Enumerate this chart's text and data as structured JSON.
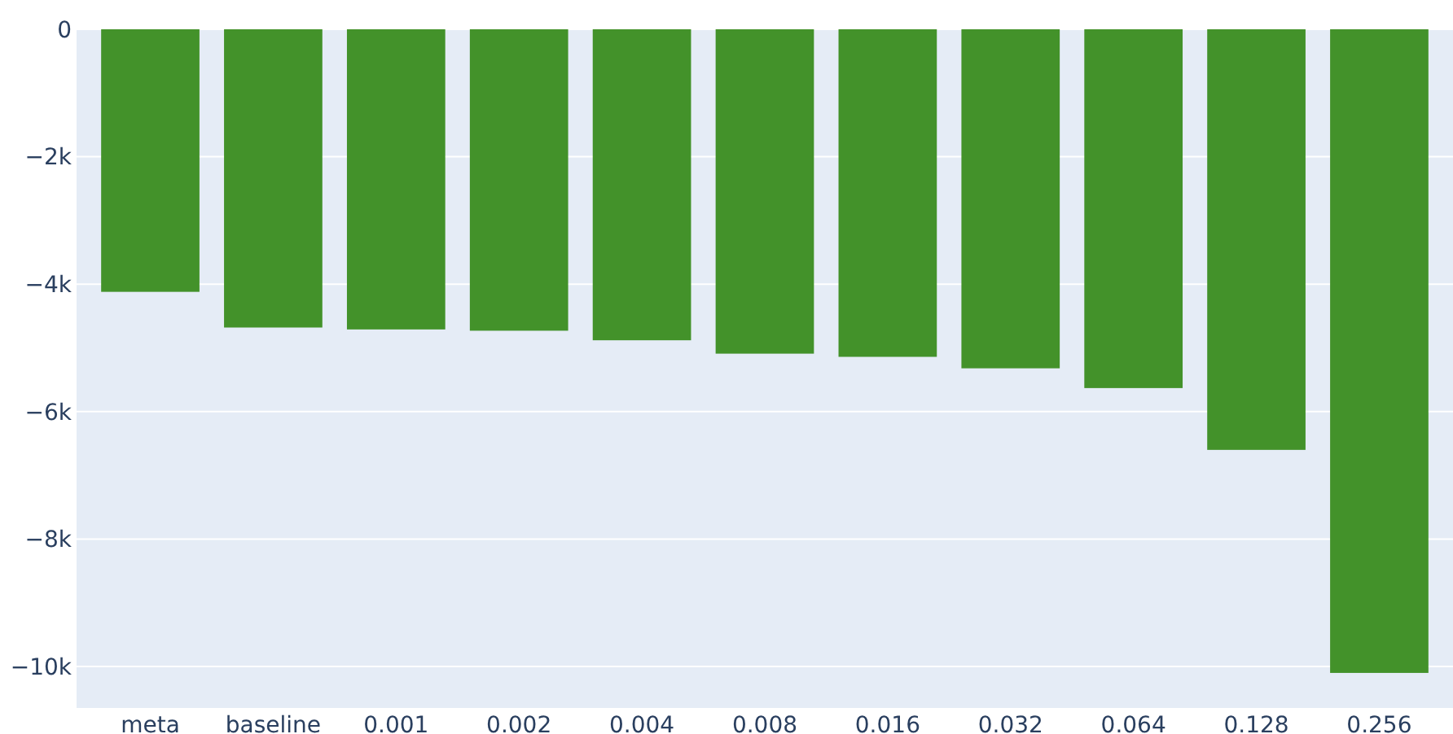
{
  "chart_data": {
    "type": "bar",
    "categories": [
      "meta",
      "baseline",
      "0.001",
      "0.002",
      "0.004",
      "0.008",
      "0.016",
      "0.032",
      "0.064",
      "0.128",
      "0.256"
    ],
    "values": [
      -4120,
      -4680,
      -4710,
      -4730,
      -4880,
      -5090,
      -5140,
      -5320,
      -5630,
      -6600,
      -10100
    ],
    "color": "#43922a",
    "ylim": [
      -10650,
      0
    ],
    "yticks": [
      {
        "value": -10000,
        "label": "−10k"
      },
      {
        "value": -8000,
        "label": "−8k"
      },
      {
        "value": -6000,
        "label": "−6k"
      },
      {
        "value": -4000,
        "label": "−4k"
      },
      {
        "value": -2000,
        "label": "−2k"
      },
      0
    ],
    "grid": "y"
  }
}
